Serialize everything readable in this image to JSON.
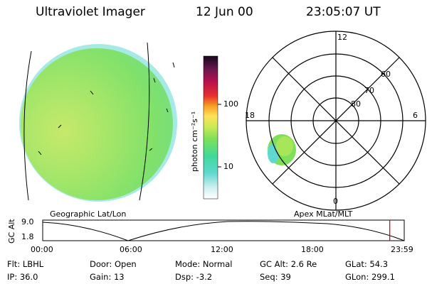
{
  "header": {
    "title": "Ultraviolet Imager",
    "date": "12 Jun 00",
    "time": "23:05:07 UT"
  },
  "colorbar": {
    "unit_label": "photon cm⁻²s⁻¹",
    "ticks": [
      "100",
      "10"
    ]
  },
  "polar_plot": {
    "mlt_labels": {
      "top": "12",
      "left": "18",
      "right": "6",
      "bottom": "0"
    },
    "mlat_labels": [
      "60",
      "70",
      "80"
    ]
  },
  "panel_labels": {
    "left": "Geographic Lat/Lon",
    "right": "Apex MLat/MLT"
  },
  "altitude_strip": {
    "axis_label": "GC Alt",
    "y_ticks": [
      "9.0",
      "1.8"
    ],
    "x_ticks": [
      "00:00",
      "06:00",
      "12:00",
      "18:00",
      "23:59"
    ],
    "current_time_fraction": 0.96
  },
  "status": {
    "row1": [
      "Flt: LBHL",
      "Door: Open",
      "Mode: Normal",
      "GC Alt: 2.6 Re",
      "GLat:  54.3"
    ],
    "row2": [
      "IP: 36.0",
      "Gain: 13",
      "Dsp:   -3.2",
      "Seq: 39",
      "GLon: 299.1"
    ]
  },
  "colors": {
    "disk_green": "#7ee05a",
    "disk_yellow": "#c8ea55",
    "disk_edge_cyan": "#5fd8d0",
    "time_marker": "#cc0000"
  }
}
